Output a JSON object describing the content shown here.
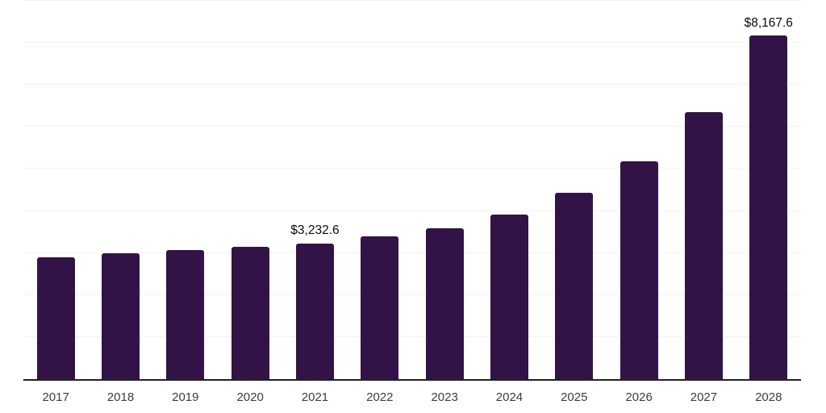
{
  "chart_data": {
    "type": "bar",
    "categories": [
      "2017",
      "2018",
      "2019",
      "2020",
      "2021",
      "2022",
      "2023",
      "2024",
      "2025",
      "2026",
      "2027",
      "2028"
    ],
    "values": [
      2900,
      2990,
      3075,
      3150,
      3232.6,
      3390,
      3580,
      3920,
      4440,
      5180,
      6350,
      8167.6
    ],
    "data_labels": [
      "",
      "",
      "",
      "",
      "$3,232.6",
      "",
      "",
      "",
      "",
      "",
      "",
      "$8,167.6"
    ],
    "title": "",
    "xlabel": "",
    "ylabel": "",
    "ylim": [
      0,
      9000
    ],
    "grid_step": 1000,
    "grid": "horizontal",
    "legend": "none",
    "colors": {
      "bar": "#321347",
      "grid_line": "#f2f2f2",
      "axis_line": "#222222",
      "tick_label": "#3c3c3c",
      "data_label": "#0a0a0a",
      "background": "#ffffff"
    }
  }
}
